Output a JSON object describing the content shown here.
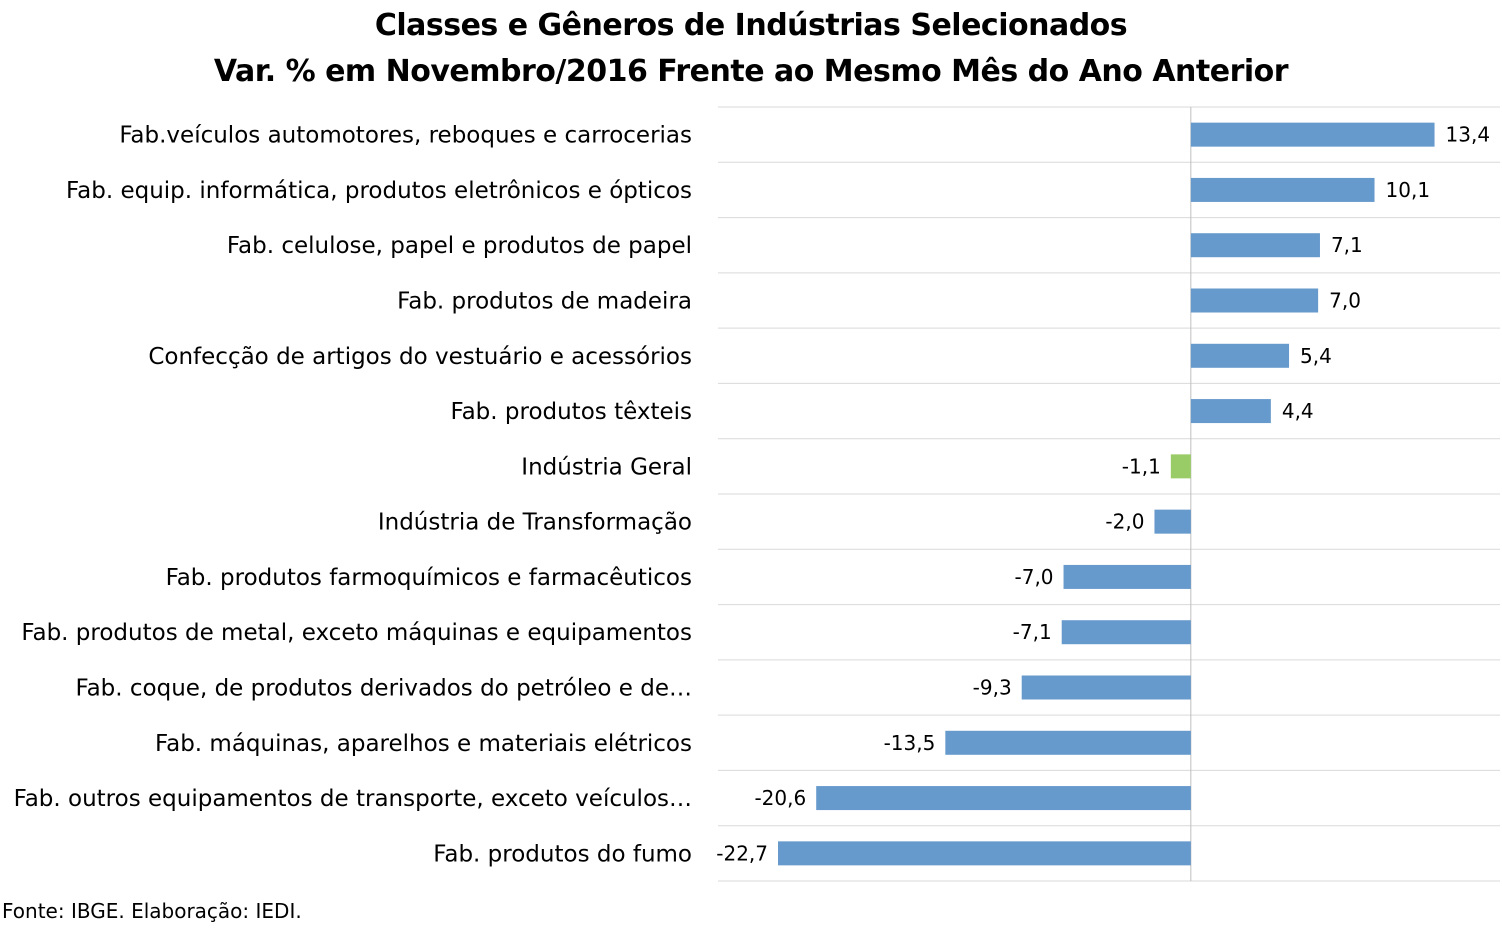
{
  "chart_data": {
    "type": "bar",
    "orientation": "horizontal",
    "title": "Classes e Gêneros de Indústrias Selecionados",
    "subtitle": "Var. % em Novembro/2016 Frente ao Mesmo Mês do Ano Anterior",
    "categories": [
      "Fab.veículos automotores, reboques e carrocerias",
      "Fab. equip. informática, produtos eletrônicos e ópticos",
      "Fab. celulose, papel e produtos de papel",
      "Fab. produtos de madeira",
      "Confecção de artigos do vestuário e acessórios",
      "Fab. produtos têxteis",
      "Indústria Geral",
      "Indústria de Transformação",
      "Fab. produtos farmoquímicos e farmacêuticos",
      "Fab. produtos de metal, exceto máquinas e equipamentos",
      "Fab. coque, de produtos derivados do petróleo e de…",
      "Fab. máquinas, aparelhos e materiais elétricos",
      "Fab. outros equipamentos de transporte, exceto veículos…",
      "Fab. produtos do fumo"
    ],
    "values": [
      13.4,
      10.1,
      7.1,
      7.0,
      5.4,
      4.4,
      -1.1,
      -2.0,
      -7.0,
      -7.1,
      -9.3,
      -13.5,
      -20.6,
      -22.7
    ],
    "value_labels": [
      "13,4",
      "10,1",
      "7,1",
      "7,0",
      "5,4",
      "4,4",
      "-1,1",
      "-2,0",
      "-7,0",
      "-7,1",
      "-9,3",
      "-13,5",
      "-20,6",
      "-22,7"
    ],
    "highlight_category": "Indústria Geral",
    "xlim": [
      -26,
      17
    ],
    "grid": true,
    "colors": {
      "bar": "#6699cc",
      "highlight": "#99cc66",
      "grid": "#d9d9d9",
      "axis": "#bfbfbf"
    }
  },
  "footer": {
    "source": "Fonte: IBGE. Elaboração: IEDI."
  }
}
